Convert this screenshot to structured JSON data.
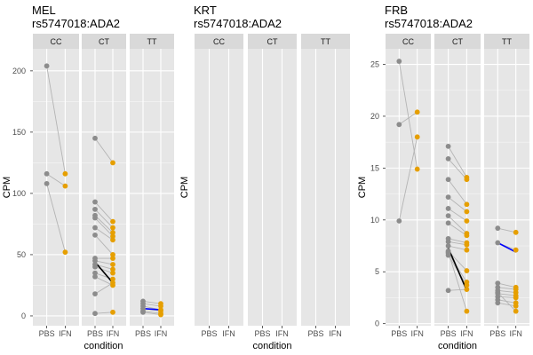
{
  "colors": {
    "panel_bg": "#e6e6e6",
    "strip_bg": "#d9d9d9",
    "grid_major": "#ffffff",
    "pbs_point": "#8c8c8c",
    "ifn_point": "#e69f00",
    "pair_line": "#b4b4b4",
    "median_ct": "#000000",
    "median_tt": "#0000ff",
    "axis_text": "#4d4d4d",
    "title_text": "#000000"
  },
  "chart_data": [
    {
      "type": "scatter",
      "title_line1": "MEL",
      "title_line2": "rs5747018:ADA2",
      "xlabel": "condition",
      "ylabel": "CPM",
      "facets": [
        "CC",
        "CT",
        "TT"
      ],
      "x_categories": [
        "PBS",
        "IFN"
      ],
      "ylim": [
        -8,
        218
      ],
      "yticks": [
        0,
        50,
        100,
        150,
        200
      ],
      "grid": true,
      "paired": {
        "CC": [
          [
            204,
            116
          ],
          [
            116,
            106
          ],
          [
            108,
            52
          ]
        ],
        "CT": [
          [
            145,
            125
          ],
          [
            93,
            77
          ],
          [
            87,
            72
          ],
          [
            82,
            68
          ],
          [
            80,
            65
          ],
          [
            72,
            62
          ],
          [
            66,
            50
          ],
          [
            47,
            47
          ],
          [
            45,
            42
          ],
          [
            42,
            38
          ],
          [
            40,
            35
          ],
          [
            35,
            30
          ],
          [
            32,
            25
          ],
          [
            18,
            27
          ],
          [
            2,
            3
          ]
        ],
        "TT": [
          [
            12,
            10
          ],
          [
            10,
            8
          ],
          [
            8,
            5
          ],
          [
            6,
            4
          ],
          [
            4,
            2
          ],
          [
            3,
            1
          ]
        ]
      },
      "median_lines": {
        "CT": [
          44,
          27
        ],
        "TT": [
          6,
          5
        ]
      }
    },
    {
      "type": "scatter",
      "title_line1": "KRT",
      "title_line2": "rs5747018:ADA2",
      "xlabel": "condition",
      "ylabel": "CPM",
      "facets": [
        "CC",
        "CT",
        "TT"
      ],
      "x_categories": [
        "PBS",
        "IFN"
      ],
      "grid": true,
      "paired": {}
    },
    {
      "type": "scatter",
      "title_line1": "FRB",
      "title_line2": "rs5747018:ADA2",
      "xlabel": "condition",
      "ylabel": "CPM",
      "facets": [
        "CC",
        "CT",
        "TT"
      ],
      "x_categories": [
        "PBS",
        "IFN"
      ],
      "ylim": [
        -0.2,
        26.5
      ],
      "yticks": [
        0,
        5,
        10,
        15,
        20,
        25
      ],
      "grid": true,
      "paired": {
        "CC": [
          [
            25.3,
            14.9
          ],
          [
            19.2,
            20.4
          ],
          [
            9.9,
            18.0
          ]
        ],
        "CT": [
          [
            17.1,
            14.1
          ],
          [
            15.9,
            13.9
          ],
          [
            13.9,
            11.5
          ],
          [
            12.2,
            10.8
          ],
          [
            11.1,
            9.9
          ],
          [
            10.4,
            8.7
          ],
          [
            9.7,
            8.5
          ],
          [
            8.2,
            7.8
          ],
          [
            7.9,
            7.6
          ],
          [
            7.5,
            7.1
          ],
          [
            7.0,
            5.1
          ],
          [
            6.8,
            4.0
          ],
          [
            6.6,
            3.7
          ],
          [
            3.2,
            3.3
          ],
          [
            6.9,
            1.2
          ]
        ],
        "TT": [
          [
            9.2,
            8.8
          ],
          [
            7.8,
            7.1
          ],
          [
            3.9,
            3.5
          ],
          [
            3.5,
            3.3
          ],
          [
            3.2,
            3.0
          ],
          [
            2.9,
            2.7
          ],
          [
            2.6,
            2.5
          ],
          [
            2.3,
            2.0
          ],
          [
            2.0,
            1.7
          ],
          [
            3.0,
            1.2
          ]
        ]
      },
      "median_lines": {
        "CT": [
          7.3,
          3.2
        ],
        "TT": [
          7.8,
          6.9
        ]
      }
    }
  ]
}
